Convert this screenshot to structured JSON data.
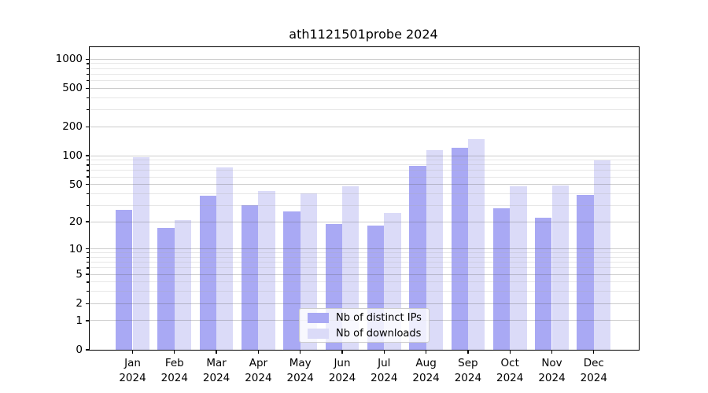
{
  "title": "ath1121501probe 2024",
  "chart_data": {
    "type": "bar",
    "title": "ath1121501probe 2024",
    "categories": [
      "Jan",
      "Feb",
      "Mar",
      "Apr",
      "May",
      "Jun",
      "Jul",
      "Aug",
      "Sep",
      "Oct",
      "Nov",
      "Dec"
    ],
    "year": "2024",
    "categories_display": [
      "Jan\n2024",
      "Feb\n2024",
      "Mar\n2024",
      "Apr\n2024",
      "May\n2024",
      "Jun\n2024",
      "Jul\n2024",
      "Aug\n2024",
      "Sep\n2024",
      "Oct\n2024",
      "Nov\n2024",
      "Dec\n2024"
    ],
    "series": [
      {
        "name": "Nb of distinct IPs",
        "color": "#a9a9f4",
        "values": [
          27,
          17,
          38,
          30,
          26,
          19,
          18,
          78,
          120,
          28,
          22,
          39
        ]
      },
      {
        "name": "Nb of downloads",
        "color": "#dbdbf8",
        "values": [
          97,
          21,
          76,
          43,
          40,
          48,
          25,
          115,
          150,
          48,
          49,
          90
        ]
      }
    ],
    "yscale": "log10(1+x)",
    "yticks": [
      0,
      1,
      2,
      5,
      10,
      20,
      50,
      100,
      200,
      500,
      1000
    ],
    "yticks_minor": [
      3,
      4,
      6,
      7,
      8,
      9,
      30,
      40,
      60,
      70,
      80,
      90,
      300,
      400,
      600,
      700,
      800,
      900
    ],
    "ylim": [
      0,
      1315
    ],
    "grid": "major+minor, drawn above bars",
    "legend_position": "lower center"
  },
  "colors": {
    "background": "#ffffff",
    "spine": "#000000",
    "bar_ips": "#a9a9f4",
    "bar_downloads": "#dbdbf8",
    "major_grid": "rgba(95,95,95,0.32)",
    "minor_grid": "rgba(170,170,170,0.28)",
    "legend_border": "#cccccc"
  }
}
